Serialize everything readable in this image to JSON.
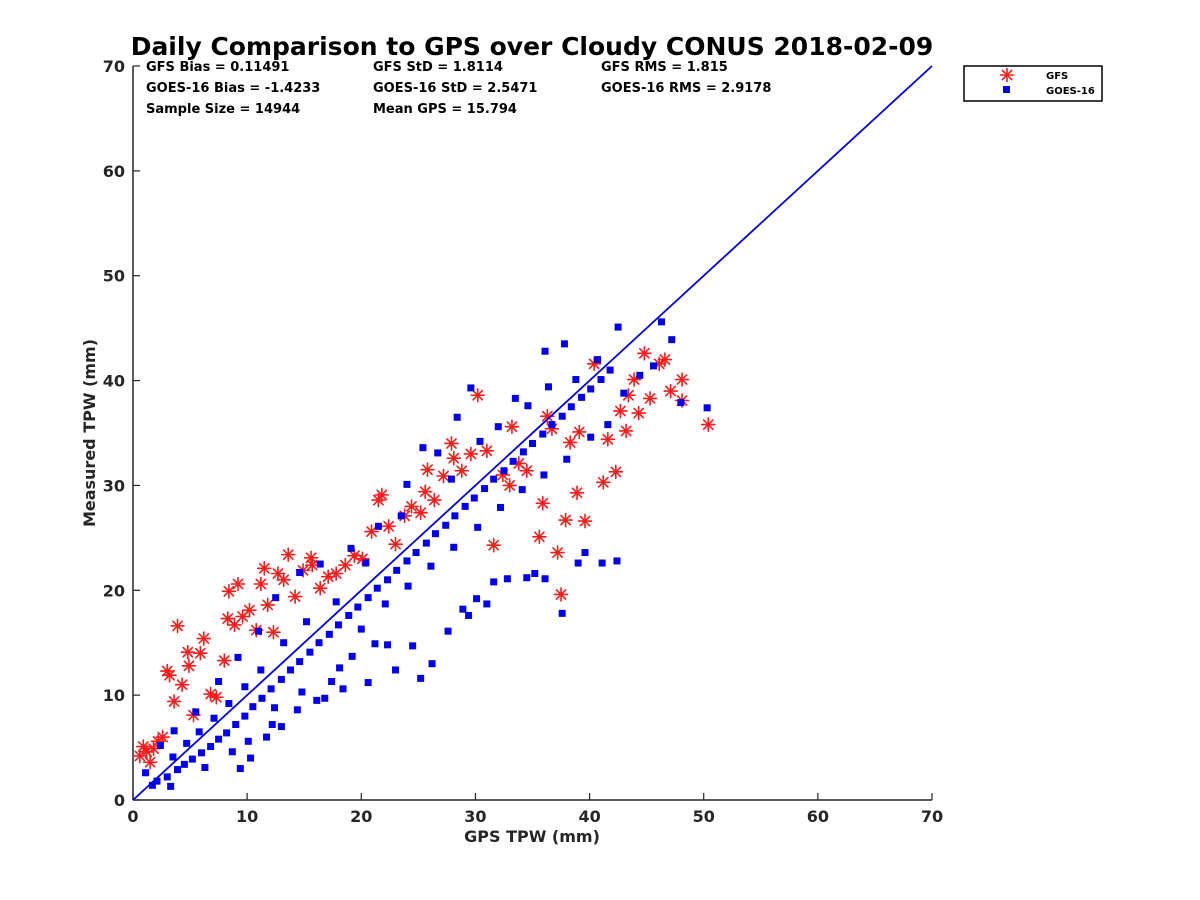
{
  "chart_data": {
    "type": "scatter",
    "title": "Daily Comparison to GPS over Cloudy CONUS 2018-02-09",
    "xlabel": "GPS TPW (mm)",
    "ylabel": "Measured TPW (mm)",
    "xlim": [
      0,
      70
    ],
    "ylim": [
      0,
      70
    ],
    "xticks": [
      0,
      10,
      20,
      30,
      40,
      50,
      60,
      70
    ],
    "yticks": [
      0,
      10,
      20,
      30,
      40,
      50,
      60,
      70
    ],
    "grid": false,
    "legend_placement": "outside-top-right",
    "reference_line": {
      "x": [
        0,
        70
      ],
      "y": [
        0,
        70
      ],
      "color": "#0000ee"
    },
    "stats": [
      "GFS Bias = 0.11491",
      "GFS StD = 1.8114",
      "GFS RMS = 1.815",
      "GOES-16 Bias = -1.4233",
      "GOES-16 StD = 2.5471",
      "GOES-16 RMS = 2.9178",
      "Sample Size = 14944",
      "Mean GPS = 15.794"
    ],
    "series": [
      {
        "name": "GFS",
        "marker": "asterisk",
        "color": "#ff1a1a",
        "points": [
          [
            0.6,
            4.2
          ],
          [
            0.9,
            5.1
          ],
          [
            1.2,
            4.6
          ],
          [
            1.5,
            3.6
          ],
          [
            1.8,
            4.9
          ],
          [
            2.2,
            5.6
          ],
          [
            2.6,
            6.0
          ],
          [
            3.0,
            12.3
          ],
          [
            3.2,
            11.9
          ],
          [
            3.6,
            9.4
          ],
          [
            3.9,
            16.6
          ],
          [
            4.3,
            11.0
          ],
          [
            4.8,
            14.1
          ],
          [
            4.9,
            12.8
          ],
          [
            5.3,
            8.1
          ],
          [
            5.9,
            14.0
          ],
          [
            6.2,
            15.4
          ],
          [
            6.8,
            10.1
          ],
          [
            7.3,
            9.8
          ],
          [
            8.0,
            13.3
          ],
          [
            8.3,
            17.3
          ],
          [
            8.4,
            19.9
          ],
          [
            8.9,
            16.7
          ],
          [
            9.2,
            20.6
          ],
          [
            9.6,
            17.5
          ],
          [
            10.2,
            18.1
          ],
          [
            10.8,
            16.2
          ],
          [
            11.2,
            20.6
          ],
          [
            11.5,
            22.1
          ],
          [
            11.8,
            18.6
          ],
          [
            12.3,
            16.0
          ],
          [
            12.7,
            21.6
          ],
          [
            13.2,
            21.0
          ],
          [
            13.6,
            23.4
          ],
          [
            14.2,
            19.4
          ],
          [
            14.9,
            21.9
          ],
          [
            15.6,
            23.1
          ],
          [
            15.7,
            22.4
          ],
          [
            16.4,
            20.2
          ],
          [
            17.1,
            21.3
          ],
          [
            17.8,
            21.6
          ],
          [
            18.6,
            22.4
          ],
          [
            19.4,
            23.3
          ],
          [
            20.1,
            23.0
          ],
          [
            20.9,
            25.6
          ],
          [
            21.5,
            28.6
          ],
          [
            21.8,
            29.1
          ],
          [
            22.4,
            26.1
          ],
          [
            23.0,
            24.4
          ],
          [
            23.8,
            27.1
          ],
          [
            24.4,
            28.0
          ],
          [
            25.2,
            27.4
          ],
          [
            25.6,
            29.4
          ],
          [
            26.4,
            28.6
          ],
          [
            27.2,
            30.9
          ],
          [
            28.1,
            32.6
          ],
          [
            28.8,
            31.4
          ],
          [
            29.6,
            33.0
          ],
          [
            30.2,
            38.6
          ],
          [
            31.0,
            33.3
          ],
          [
            31.6,
            24.3
          ],
          [
            32.4,
            31.0
          ],
          [
            33.0,
            30.0
          ],
          [
            33.8,
            32.1
          ],
          [
            34.5,
            31.4
          ],
          [
            35.6,
            25.1
          ],
          [
            35.9,
            28.3
          ],
          [
            36.3,
            36.6
          ],
          [
            37.2,
            23.6
          ],
          [
            37.5,
            19.6
          ],
          [
            37.9,
            26.7
          ],
          [
            38.3,
            34.1
          ],
          [
            38.9,
            29.3
          ],
          [
            39.6,
            26.6
          ],
          [
            40.4,
            41.6
          ],
          [
            41.2,
            30.3
          ],
          [
            41.6,
            34.4
          ],
          [
            42.3,
            31.3
          ],
          [
            42.7,
            37.1
          ],
          [
            43.4,
            38.6
          ],
          [
            43.9,
            40.1
          ],
          [
            44.3,
            36.9
          ],
          [
            44.8,
            42.6
          ],
          [
            45.3,
            38.3
          ],
          [
            46.1,
            41.6
          ],
          [
            46.6,
            42.0
          ],
          [
            47.1,
            39.0
          ],
          [
            48.1,
            40.1
          ],
          [
            48.1,
            38.1
          ],
          [
            50.4,
            35.8
          ],
          [
            43.2,
            35.2
          ],
          [
            39.1,
            35.1
          ],
          [
            36.7,
            35.4
          ],
          [
            33.2,
            35.6
          ],
          [
            27.9,
            34.0
          ],
          [
            25.8,
            31.5
          ]
        ]
      },
      {
        "name": "GOES-16",
        "marker": "square",
        "color": "#0000ee",
        "points": [
          [
            2.1,
            1.8
          ],
          [
            3.0,
            2.2
          ],
          [
            3.9,
            2.9
          ],
          [
            4.5,
            3.4
          ],
          [
            5.2,
            3.9
          ],
          [
            6.0,
            4.5
          ],
          [
            6.8,
            5.1
          ],
          [
            7.5,
            5.8
          ],
          [
            8.2,
            6.4
          ],
          [
            9.0,
            7.2
          ],
          [
            9.8,
            8.0
          ],
          [
            10.5,
            8.9
          ],
          [
            11.3,
            9.7
          ],
          [
            12.1,
            10.6
          ],
          [
            13.0,
            11.5
          ],
          [
            13.8,
            12.4
          ],
          [
            14.6,
            13.2
          ],
          [
            15.5,
            14.1
          ],
          [
            16.3,
            15.0
          ],
          [
            17.2,
            15.8
          ],
          [
            18.0,
            16.7
          ],
          [
            18.9,
            17.6
          ],
          [
            19.7,
            18.4
          ],
          [
            20.6,
            19.3
          ],
          [
            21.4,
            20.2
          ],
          [
            22.3,
            21.0
          ],
          [
            23.1,
            21.9
          ],
          [
            24.0,
            22.8
          ],
          [
            24.8,
            23.6
          ],
          [
            25.7,
            24.5
          ],
          [
            26.5,
            25.4
          ],
          [
            27.4,
            26.2
          ],
          [
            28.2,
            27.1
          ],
          [
            29.1,
            28.0
          ],
          [
            29.9,
            28.8
          ],
          [
            30.8,
            29.7
          ],
          [
            31.6,
            30.6
          ],
          [
            32.5,
            31.4
          ],
          [
            33.3,
            32.3
          ],
          [
            34.2,
            33.2
          ],
          [
            35.0,
            34.0
          ],
          [
            35.9,
            34.9
          ],
          [
            36.7,
            35.8
          ],
          [
            37.6,
            36.6
          ],
          [
            38.4,
            37.5
          ],
          [
            39.3,
            38.4
          ],
          [
            40.1,
            39.2
          ],
          [
            41.0,
            40.1
          ],
          [
            41.8,
            41.0
          ],
          [
            9.4,
            3.0
          ],
          [
            10.3,
            4.0
          ],
          [
            11.7,
            6.0
          ],
          [
            12.4,
            8.8
          ],
          [
            13.0,
            7.0
          ],
          [
            14.8,
            10.3
          ],
          [
            16.1,
            9.5
          ],
          [
            17.4,
            11.3
          ],
          [
            18.4,
            10.6
          ],
          [
            19.2,
            13.7
          ],
          [
            20.6,
            11.2
          ],
          [
            21.2,
            14.9
          ],
          [
            22.3,
            14.8
          ],
          [
            23.0,
            12.4
          ],
          [
            24.5,
            14.7
          ],
          [
            25.2,
            11.6
          ],
          [
            26.2,
            13.0
          ],
          [
            27.6,
            16.1
          ],
          [
            28.9,
            18.2
          ],
          [
            29.4,
            17.6
          ],
          [
            30.1,
            19.2
          ],
          [
            31.0,
            18.7
          ],
          [
            31.6,
            20.8
          ],
          [
            32.8,
            21.1
          ],
          [
            34.5,
            21.2
          ],
          [
            35.2,
            21.6
          ],
          [
            36.1,
            21.1
          ],
          [
            37.6,
            17.8
          ],
          [
            39.0,
            22.6
          ],
          [
            39.6,
            23.6
          ],
          [
            41.1,
            22.6
          ],
          [
            42.4,
            22.8
          ],
          [
            42.5,
            45.1
          ],
          [
            45.6,
            41.4
          ],
          [
            46.3,
            45.6
          ],
          [
            47.2,
            43.9
          ],
          [
            48.0,
            37.9
          ],
          [
            50.3,
            37.4
          ],
          [
            37.8,
            43.5
          ],
          [
            36.1,
            42.8
          ],
          [
            29.6,
            39.3
          ],
          [
            28.4,
            36.5
          ],
          [
            26.7,
            33.1
          ],
          [
            25.4,
            33.6
          ],
          [
            24.0,
            30.1
          ],
          [
            21.5,
            26.1
          ],
          [
            19.1,
            24.0
          ],
          [
            16.4,
            22.5
          ],
          [
            14.6,
            21.7
          ],
          [
            12.5,
            19.3
          ],
          [
            11.0,
            16.1
          ],
          [
            9.2,
            13.6
          ],
          [
            7.5,
            11.3
          ],
          [
            5.5,
            8.4
          ],
          [
            3.6,
            6.6
          ],
          [
            2.4,
            5.2
          ],
          [
            1.1,
            2.6
          ],
          [
            1.7,
            1.4
          ],
          [
            3.3,
            1.3
          ],
          [
            6.3,
            3.1
          ],
          [
            8.7,
            4.6
          ],
          [
            10.1,
            5.6
          ],
          [
            12.2,
            7.2
          ],
          [
            14.4,
            8.6
          ],
          [
            16.8,
            9.7
          ],
          [
            18.1,
            12.6
          ],
          [
            20.0,
            16.3
          ],
          [
            22.1,
            18.7
          ],
          [
            24.1,
            20.4
          ],
          [
            26.1,
            22.3
          ],
          [
            28.1,
            24.1
          ],
          [
            30.2,
            26.0
          ],
          [
            32.2,
            27.9
          ],
          [
            34.1,
            29.6
          ],
          [
            36.0,
            31.0
          ],
          [
            38.0,
            32.5
          ],
          [
            40.1,
            34.6
          ],
          [
            41.6,
            35.8
          ],
          [
            43.0,
            38.8
          ],
          [
            44.4,
            40.5
          ],
          [
            34.6,
            37.6
          ],
          [
            32.0,
            35.6
          ],
          [
            30.4,
            34.2
          ],
          [
            33.5,
            38.3
          ],
          [
            36.4,
            39.4
          ],
          [
            38.8,
            40.1
          ],
          [
            40.7,
            42.0
          ],
          [
            27.9,
            30.6
          ],
          [
            23.5,
            27.1
          ],
          [
            20.4,
            22.6
          ],
          [
            17.8,
            18.9
          ],
          [
            15.2,
            17.0
          ],
          [
            13.2,
            15.0
          ],
          [
            11.2,
            12.4
          ],
          [
            9.8,
            10.8
          ],
          [
            8.4,
            9.2
          ],
          [
            7.1,
            7.8
          ],
          [
            5.8,
            6.5
          ],
          [
            4.7,
            5.4
          ],
          [
            3.5,
            4.1
          ]
        ]
      }
    ]
  }
}
